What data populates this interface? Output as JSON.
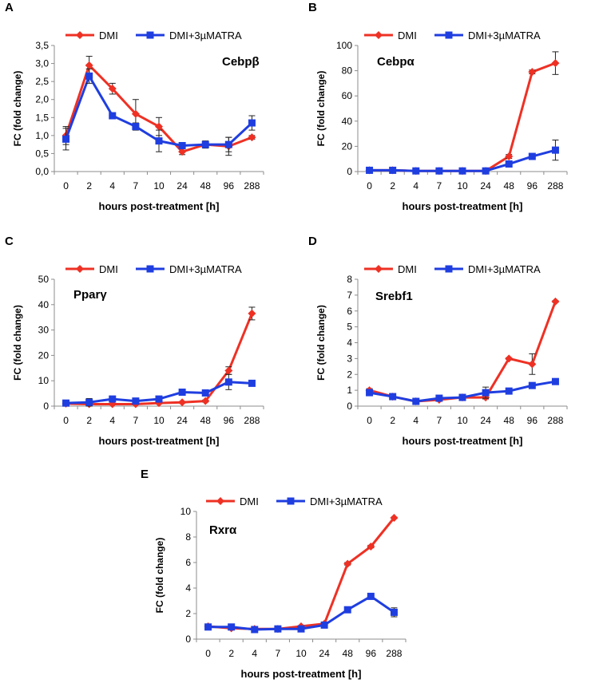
{
  "figure": {
    "xlabel": "hours post-treatment [h]",
    "ylabel": "FC (fold change)",
    "legend": {
      "dmi": "DMI",
      "atra": "DMI+3µMATRA"
    },
    "colors": {
      "dmi": "#ee3124",
      "atra": "#1f3ee0",
      "axis": "#8c8c8c",
      "text": "#000000"
    }
  },
  "chart_data": [
    {
      "panel": "A",
      "gene": "Cebpβ",
      "type": "line",
      "title": "Cebpβ",
      "categories": [
        "0",
        "2",
        "4",
        "7",
        "10",
        "24",
        "48",
        "96",
        "288"
      ],
      "yticks": [
        "0,0",
        "0,5",
        "1,0",
        "1,5",
        "2,0",
        "2,5",
        "3,0",
        "3,5"
      ],
      "ylim": [
        0,
        3.5
      ],
      "xlabel": "hours post-treatment [h]",
      "ylabel": "FC (fold change)",
      "series": [
        {
          "name": "DMI",
          "values": [
            1.0,
            2.95,
            2.3,
            1.6,
            1.25,
            0.55,
            0.75,
            0.7,
            0.95
          ],
          "errors": [
            0.25,
            0.25,
            0.15,
            0.4,
            0.25,
            0.08,
            0.08,
            0.25,
            0.05
          ]
        },
        {
          "name": "DMI+3µMATRA",
          "values": [
            0.9,
            2.65,
            1.55,
            1.25,
            0.85,
            0.72,
            0.75,
            0.75,
            1.35
          ],
          "errors": [
            0.3,
            0.2,
            0.05,
            0.1,
            0.3,
            0.08,
            0.1,
            0.2,
            0.2
          ]
        }
      ]
    },
    {
      "panel": "B",
      "gene": "Cebpα",
      "type": "line",
      "title": "Cebpα",
      "categories": [
        "0",
        "2",
        "4",
        "7",
        "10",
        "24",
        "48",
        "96",
        "288"
      ],
      "yticks": [
        "0",
        "20",
        "40",
        "60",
        "80",
        "100"
      ],
      "ylim": [
        0,
        100
      ],
      "xlabel": "hours post-treatment [h]",
      "ylabel": "FC (fold change)",
      "series": [
        {
          "name": "DMI",
          "values": [
            1,
            1,
            0.5,
            0.5,
            0.5,
            0.5,
            12,
            79,
            86
          ],
          "errors": [
            0,
            0,
            0,
            0,
            0,
            0,
            1.5,
            1.5,
            9
          ]
        },
        {
          "name": "DMI+3µMATRA",
          "values": [
            1,
            1,
            0.5,
            0.5,
            0.5,
            0.5,
            6,
            12,
            17
          ],
          "errors": [
            0,
            0,
            0,
            0,
            0,
            0,
            1,
            1.5,
            8
          ]
        }
      ]
    },
    {
      "panel": "C",
      "gene": "Pparγ",
      "type": "line",
      "title": "Pparγ",
      "categories": [
        "0",
        "2",
        "4",
        "7",
        "10",
        "24",
        "48",
        "96",
        "288"
      ],
      "yticks": [
        "0",
        "10",
        "20",
        "30",
        "40",
        "50"
      ],
      "ylim": [
        0,
        50
      ],
      "xlabel": "hours post-treatment [h]",
      "ylabel": "FC (fold change)",
      "series": [
        {
          "name": "DMI",
          "values": [
            1,
            0.8,
            0.8,
            0.8,
            1.2,
            1.5,
            2,
            14,
            36.5
          ],
          "errors": [
            0.2,
            0.3,
            0.2,
            0.2,
            0.3,
            0.3,
            0.4,
            1.5,
            2.5
          ]
        },
        {
          "name": "DMI+3µMATRA",
          "values": [
            1.2,
            1.5,
            2.8,
            2,
            2.8,
            5.5,
            5.2,
            9.5,
            9
          ],
          "errors": [
            0.3,
            1.5,
            0.5,
            0.5,
            0.5,
            0.5,
            0.5,
            3,
            1
          ]
        }
      ]
    },
    {
      "panel": "D",
      "gene": "Srebf1",
      "type": "line",
      "title": "Srebf1",
      "categories": [
        "0",
        "2",
        "4",
        "7",
        "10",
        "24",
        "48",
        "96",
        "288"
      ],
      "yticks": [
        "0",
        "1",
        "2",
        "3",
        "4",
        "5",
        "6",
        "7",
        "8"
      ],
      "ylim": [
        0,
        8
      ],
      "xlabel": "hours post-treatment [h]",
      "ylabel": "FC (fold change)",
      "series": [
        {
          "name": "DMI",
          "values": [
            1.0,
            0.6,
            0.3,
            0.4,
            0.55,
            0.55,
            3.0,
            2.65,
            6.6
          ],
          "errors": [
            0.1,
            0.05,
            0.05,
            0.05,
            0.05,
            0.1,
            0.05,
            0.65,
            0.05
          ]
        },
        {
          "name": "DMI+3µMATRA",
          "values": [
            0.85,
            0.6,
            0.3,
            0.5,
            0.55,
            0.85,
            0.95,
            1.3,
            1.55
          ],
          "errors": [
            0.1,
            0.05,
            0.05,
            0.05,
            0.05,
            0.35,
            0.05,
            0.05,
            0.1
          ]
        }
      ]
    },
    {
      "panel": "E",
      "gene": "Rxrα",
      "type": "line",
      "title": "Rxrα",
      "categories": [
        "0",
        "2",
        "4",
        "7",
        "10",
        "24",
        "48",
        "96",
        "288"
      ],
      "yticks": [
        "0",
        "2",
        "4",
        "6",
        "8",
        "10"
      ],
      "ylim": [
        0,
        10
      ],
      "xlabel": "hours post-treatment [h]",
      "ylabel": "FC (fold change)",
      "series": [
        {
          "name": "DMI",
          "values": [
            1,
            0.85,
            0.8,
            0.8,
            1.0,
            1.2,
            5.9,
            7.25,
            9.5
          ],
          "errors": [
            0.05,
            0.05,
            0.05,
            0.05,
            0.05,
            0.1,
            0.1,
            0.1,
            0.05
          ]
        },
        {
          "name": "DMI+3µMATRA",
          "values": [
            0.95,
            0.95,
            0.75,
            0.8,
            0.8,
            1.1,
            2.3,
            3.35,
            2.1
          ],
          "errors": [
            0.05,
            0.05,
            0.05,
            0.05,
            0.05,
            0.1,
            0.1,
            0.1,
            0.35
          ]
        }
      ]
    }
  ]
}
